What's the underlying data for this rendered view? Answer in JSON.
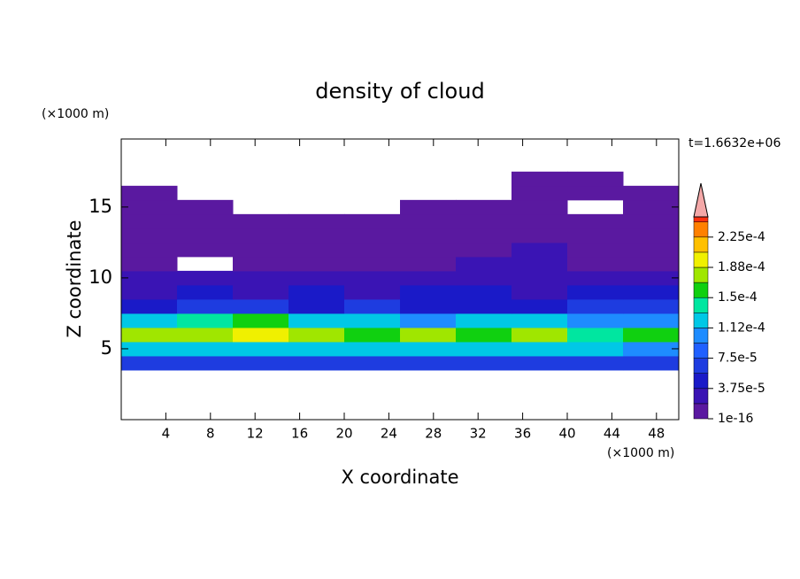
{
  "chart_data": {
    "type": "contour",
    "title": "density of cloud",
    "time_label": "t=1.6632e+06",
    "xlabel": "X coordinate",
    "ylabel": "Z coordinate",
    "x_unit": "(×1000 m)",
    "y_unit": "(×1000 m)",
    "xlim": [
      0,
      50
    ],
    "ylim": [
      0,
      19.8
    ],
    "xticks": [
      4,
      8,
      12,
      16,
      20,
      24,
      28,
      32,
      36,
      40,
      44,
      48
    ],
    "yticks": [
      5,
      10,
      15
    ],
    "x": [
      2.5,
      7.5,
      12.5,
      17.5,
      22.5,
      27.5,
      32.5,
      37.5,
      42.5,
      47.5
    ],
    "y": [
      4,
      5,
      6,
      7,
      8,
      9,
      10,
      11,
      12,
      13,
      14,
      15,
      16,
      17
    ],
    "values": [
      [
        6e-05,
        6.5e-05,
        6e-05,
        6e-05,
        7e-05,
        6e-05,
        6.5e-05,
        6e-05,
        6e-05,
        6.5e-05
      ],
      [
        0.00012,
        0.00013,
        0.000125,
        0.00012,
        0.00013,
        0.00012,
        0.00013,
        0.000115,
        0.00012,
        0.00011
      ],
      [
        0.00017,
        0.00018,
        0.0002,
        0.00017,
        0.00016,
        0.00018,
        0.00016,
        0.000175,
        0.00014,
        0.00016
      ],
      [
        0.00012,
        0.00014,
        0.00016,
        0.00013,
        0.00012,
        0.00011,
        0.00013,
        0.00012,
        0.0001,
        0.00011
      ],
      [
        5e-05,
        6e-05,
        6e-05,
        5.5e-05,
        6e-05,
        5e-05,
        5.5e-05,
        5e-05,
        6e-05,
        7e-05
      ],
      [
        3.5e-05,
        4e-05,
        3e-05,
        4e-05,
        3.5e-05,
        4.5e-05,
        4e-05,
        3.5e-05,
        4e-05,
        4e-05
      ],
      [
        2.5e-05,
        2e-05,
        2.5e-05,
        3e-05,
        2e-05,
        2.5e-05,
        3e-05,
        2e-05,
        2.5e-05,
        2e-05
      ],
      [
        1.5e-05,
        null,
        1e-05,
        1.5e-05,
        1e-05,
        1.5e-05,
        2e-05,
        2e-05,
        1.5e-05,
        1.5e-05
      ],
      [
        1e-05,
        1e-05,
        1e-05,
        1.5e-05,
        1e-05,
        1e-05,
        1.5e-05,
        2e-05,
        1e-05,
        1e-05
      ],
      [
        5e-06,
        5e-06,
        5e-06,
        5e-06,
        5e-06,
        5e-06,
        5e-06,
        1e-05,
        5e-06,
        5e-06
      ],
      [
        5e-06,
        5e-06,
        5e-06,
        5e-06,
        5e-06,
        5e-06,
        5e-06,
        5e-06,
        5e-06,
        5e-06
      ],
      [
        5e-06,
        5e-06,
        null,
        null,
        null,
        5e-06,
        5e-06,
        5e-06,
        null,
        5e-06
      ],
      [
        5e-06,
        null,
        null,
        null,
        null,
        null,
        null,
        5e-06,
        5e-06,
        5e-06
      ],
      [
        null,
        null,
        null,
        null,
        null,
        null,
        null,
        5e-06,
        5e-06,
        null
      ]
    ],
    "colorbar": {
      "clim": [
        1e-16,
        0.00025
      ],
      "levels": [
        1e-16,
        1.875e-05,
        3.75e-05,
        5.625e-05,
        7.5e-05,
        9.375e-05,
        0.0001125,
        0.00013125,
        0.00015,
        0.00016875,
        0.0001875,
        0.00020625,
        0.000225,
        0.00024375
      ],
      "colors": [
        "#5a19a0",
        "#3a14b4",
        "#1a1ac8",
        "#1e3ce0",
        "#2060ff",
        "#1e8cff",
        "#00c8e6",
        "#00e6a0",
        "#10d010",
        "#a0e600",
        "#f0f000",
        "#ffc000",
        "#ff8000",
        "#ff3010"
      ],
      "extend_color": "#f4a8a8",
      "ticks": [
        {
          "value": 1e-16,
          "label": "1e-16"
        },
        {
          "value": 3.75e-05,
          "label": "3.75e-5"
        },
        {
          "value": 7.5e-05,
          "label": "7.5e-5"
        },
        {
          "value": 0.0001125,
          "label": "1.12e-4"
        },
        {
          "value": 0.00015,
          "label": "1.5e-4"
        },
        {
          "value": 0.0001875,
          "label": "1.88e-4"
        },
        {
          "value": 0.000225,
          "label": "2.25e-4"
        }
      ]
    }
  }
}
